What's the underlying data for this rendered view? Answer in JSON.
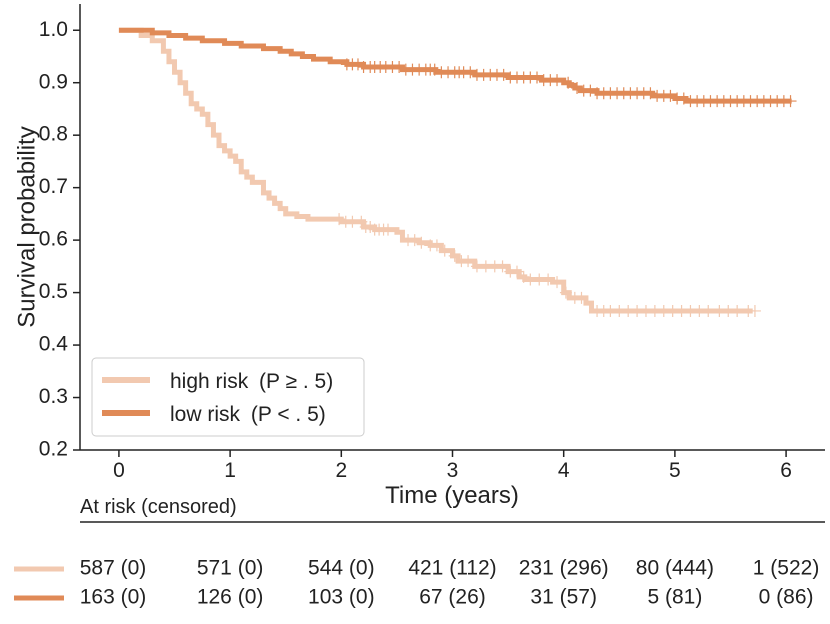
{
  "chart_data": {
    "type": "line",
    "subtype": "kaplan-meier",
    "xlabel": "Time (years)",
    "ylabel": "Survival probability",
    "xlim": [
      -0.35,
      6.35
    ],
    "ylim": [
      0.2,
      1.05
    ],
    "x_ticks": [
      0,
      1,
      2,
      3,
      4,
      5,
      6
    ],
    "x_tick_labels": [
      "0",
      "1",
      "2",
      "3",
      "4",
      "5",
      "6"
    ],
    "y_ticks": [
      0.2,
      0.3,
      0.4,
      0.5,
      0.6,
      0.7,
      0.8,
      0.9,
      1.0
    ],
    "y_tick_labels": [
      "0.2",
      "0.3",
      "0.4",
      "0.5",
      "0.6",
      "0.7",
      "0.8",
      "0.9",
      "1.0"
    ],
    "grid": false,
    "legend_position": "bottom-left",
    "series": [
      {
        "name": "high risk",
        "legend_math": "(P ≥ . 5)",
        "color": "#f2c9b0",
        "steps": [
          [
            0,
            1.0
          ],
          [
            0.2,
            0.99
          ],
          [
            0.3,
            0.98
          ],
          [
            0.4,
            0.96
          ],
          [
            0.45,
            0.94
          ],
          [
            0.5,
            0.92
          ],
          [
            0.55,
            0.9
          ],
          [
            0.6,
            0.88
          ],
          [
            0.65,
            0.86
          ],
          [
            0.7,
            0.85
          ],
          [
            0.75,
            0.84
          ],
          [
            0.8,
            0.82
          ],
          [
            0.85,
            0.8
          ],
          [
            0.9,
            0.78
          ],
          [
            0.95,
            0.77
          ],
          [
            1.0,
            0.76
          ],
          [
            1.05,
            0.75
          ],
          [
            1.1,
            0.73
          ],
          [
            1.15,
            0.72
          ],
          [
            1.2,
            0.71
          ],
          [
            1.3,
            0.69
          ],
          [
            1.35,
            0.68
          ],
          [
            1.4,
            0.67
          ],
          [
            1.45,
            0.66
          ],
          [
            1.5,
            0.65
          ],
          [
            1.6,
            0.645
          ],
          [
            1.7,
            0.64
          ],
          [
            2.0,
            0.635
          ],
          [
            2.2,
            0.625
          ],
          [
            2.3,
            0.62
          ],
          [
            2.5,
            0.615
          ],
          [
            2.55,
            0.6
          ],
          [
            2.7,
            0.595
          ],
          [
            2.8,
            0.59
          ],
          [
            2.9,
            0.58
          ],
          [
            3.0,
            0.57
          ],
          [
            3.05,
            0.56
          ],
          [
            3.2,
            0.55
          ],
          [
            3.5,
            0.54
          ],
          [
            3.6,
            0.53
          ],
          [
            3.65,
            0.525
          ],
          [
            3.9,
            0.52
          ],
          [
            4.0,
            0.5
          ],
          [
            4.05,
            0.49
          ],
          [
            4.2,
            0.48
          ],
          [
            4.25,
            0.465
          ],
          [
            5.7,
            0.465
          ]
        ],
        "censor_times": [
          1.98,
          2.04,
          2.1,
          2.18,
          2.22,
          2.26,
          2.3,
          2.34,
          2.38,
          2.42,
          2.6,
          2.66,
          2.72,
          2.8,
          2.86,
          2.93,
          3.02,
          3.08,
          3.14,
          3.22,
          3.3,
          3.38,
          3.45,
          3.52,
          3.58,
          3.64,
          3.7,
          3.78,
          3.86,
          3.94,
          4.02,
          4.1,
          4.16,
          4.3,
          4.36,
          4.42,
          4.5,
          4.58,
          4.66,
          4.74,
          4.82,
          4.9,
          4.98,
          5.06,
          5.14,
          5.22,
          5.3,
          5.4,
          5.48,
          5.56,
          5.66,
          5.72
        ]
      },
      {
        "name": "low risk",
        "legend_math": "(P < . 5)",
        "color": "#e08a57",
        "steps": [
          [
            0,
            1.0
          ],
          [
            0.3,
            0.995
          ],
          [
            0.45,
            0.99
          ],
          [
            0.6,
            0.985
          ],
          [
            0.75,
            0.98
          ],
          [
            0.95,
            0.975
          ],
          [
            1.1,
            0.97
          ],
          [
            1.3,
            0.965
          ],
          [
            1.45,
            0.96
          ],
          [
            1.55,
            0.955
          ],
          [
            1.65,
            0.95
          ],
          [
            1.75,
            0.945
          ],
          [
            1.9,
            0.94
          ],
          [
            2.05,
            0.935
          ],
          [
            2.2,
            0.93
          ],
          [
            2.55,
            0.925
          ],
          [
            2.85,
            0.92
          ],
          [
            3.2,
            0.915
          ],
          [
            3.5,
            0.91
          ],
          [
            3.8,
            0.905
          ],
          [
            4.0,
            0.9
          ],
          [
            4.05,
            0.895
          ],
          [
            4.1,
            0.89
          ],
          [
            4.15,
            0.885
          ],
          [
            4.3,
            0.88
          ],
          [
            4.8,
            0.875
          ],
          [
            5.0,
            0.87
          ],
          [
            5.1,
            0.865
          ],
          [
            6.05,
            0.865
          ]
        ],
        "censor_times": [
          2.05,
          2.1,
          2.15,
          2.2,
          2.26,
          2.3,
          2.35,
          2.4,
          2.46,
          2.52,
          2.58,
          2.64,
          2.7,
          2.76,
          2.8,
          2.84,
          2.9,
          2.96,
          3.02,
          3.06,
          3.1,
          3.16,
          3.22,
          3.28,
          3.34,
          3.4,
          3.46,
          3.52,
          3.58,
          3.64,
          3.7,
          3.76,
          3.82,
          3.88,
          3.94,
          4.04,
          4.12,
          4.18,
          4.24,
          4.3,
          4.36,
          4.42,
          4.48,
          4.54,
          4.6,
          4.66,
          4.72,
          4.78,
          4.84,
          4.9,
          4.96,
          5.02,
          5.08,
          5.14,
          5.2,
          5.26,
          5.32,
          5.38,
          5.44,
          5.5,
          5.56,
          5.62,
          5.68,
          5.74,
          5.8,
          5.86,
          5.92,
          5.98,
          6.04
        ]
      }
    ],
    "risk_table": {
      "title": "At risk (censored)",
      "times": [
        0,
        1,
        2,
        3,
        4,
        5,
        6
      ],
      "rows": [
        {
          "name": "high risk",
          "color": "#f2c9b0",
          "values": [
            "587 (0)",
            "571 (0)",
            "544 (0)",
            "421 (112)",
            "231 (296)",
            "80 (444)",
            "1 (522)"
          ]
        },
        {
          "name": "low risk",
          "color": "#e08a57",
          "values": [
            "163 (0)",
            "126 (0)",
            "103 (0)",
            "67 (26)",
            "31 (57)",
            "5 (81)",
            "0 (86)"
          ]
        }
      ]
    }
  }
}
